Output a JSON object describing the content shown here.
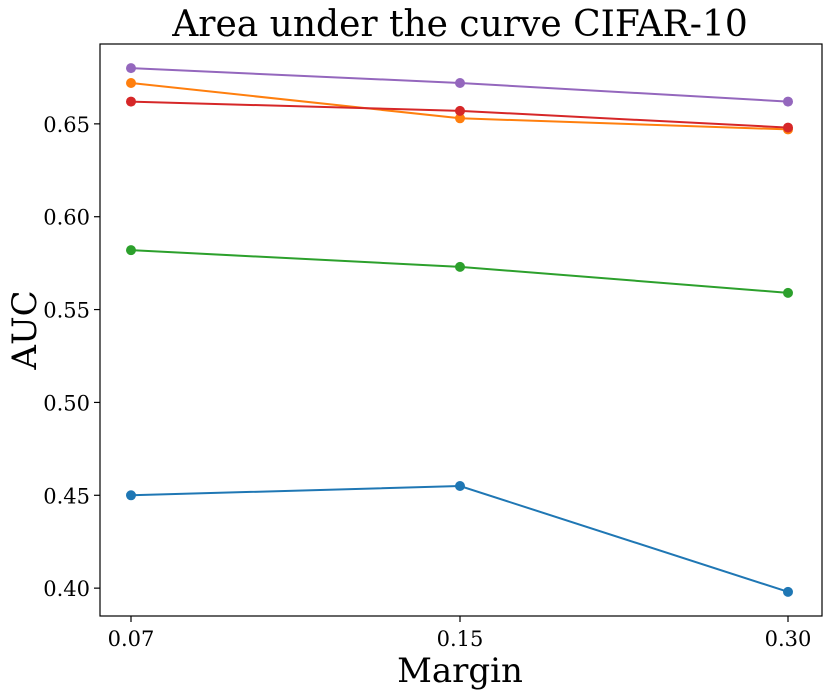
{
  "chart_data": {
    "type": "line",
    "title": "Area under the curve CIFAR-10",
    "xlabel": "Margin",
    "ylabel": "AUC",
    "categories": [
      "0.07",
      "0.15",
      "0.30"
    ],
    "ylim": [
      0.385,
      0.693
    ],
    "yticks": [
      0.4,
      0.45,
      0.5,
      0.55,
      0.6,
      0.65
    ],
    "ytick_labels": [
      "0.40",
      "0.45",
      "0.50",
      "0.55",
      "0.60",
      "0.65"
    ],
    "grid": false,
    "series": [
      {
        "name": "blue",
        "color": "#1f77b4",
        "values": [
          0.45,
          0.455,
          0.398
        ]
      },
      {
        "name": "orange",
        "color": "#ff7f0e",
        "values": [
          0.672,
          0.653,
          0.647
        ]
      },
      {
        "name": "green",
        "color": "#2ca02c",
        "values": [
          0.582,
          0.573,
          0.559
        ]
      },
      {
        "name": "red",
        "color": "#d62728",
        "values": [
          0.662,
          0.657,
          0.648
        ]
      },
      {
        "name": "purple",
        "color": "#9467bd",
        "values": [
          0.68,
          0.672,
          0.662
        ]
      }
    ]
  }
}
